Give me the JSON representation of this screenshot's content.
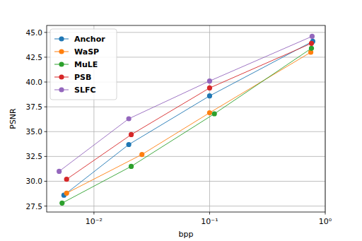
{
  "chart_data": {
    "type": "line",
    "x_label": "bpp",
    "y_label": "PSNR",
    "log": "x",
    "grid": true,
    "legend": "upper left",
    "marker": "circle",
    "xlim": [
      0.0039,
      1.0
    ],
    "ylim": [
      26.9,
      45.7
    ],
    "xticks": [
      {
        "value": 0.01,
        "label": "10⁻²"
      },
      {
        "value": 0.1,
        "label": "10⁻¹"
      },
      {
        "value": 1,
        "label": "10⁰"
      }
    ],
    "yticks": [
      27.5,
      {
        "value": 30,
        "label": "30.0"
      },
      32.5,
      {
        "value": 35,
        "label": "35.0"
      },
      37.5,
      {
        "value": 40,
        "label": "40.0"
      },
      42.5,
      {
        "value": 45,
        "label": "45.0"
      }
    ],
    "series": [
      {
        "name": "Anchor",
        "color": "#1f77b4",
        "x": [
          0.0055,
          0.02,
          0.1,
          0.78
        ],
        "values": [
          28.6,
          33.7,
          38.6,
          44.1
        ]
      },
      {
        "name": "WaSP",
        "color": "#ff7f0e",
        "x": [
          0.0058,
          0.026,
          0.1,
          0.75
        ],
        "values": [
          28.8,
          32.7,
          36.9,
          43.0
        ]
      },
      {
        "name": "MuLE",
        "color": "#2ca02c",
        "x": [
          0.0053,
          0.021,
          0.11,
          0.76
        ],
        "values": [
          27.8,
          31.5,
          36.8,
          43.4
        ]
      },
      {
        "name": "PSB",
        "color": "#d62728",
        "x": [
          0.0058,
          0.021,
          0.1,
          0.76
        ],
        "values": [
          30.2,
          34.7,
          39.4,
          43.9
        ]
      },
      {
        "name": "SLFC",
        "color": "#9467bd",
        "x": [
          0.005,
          0.02,
          0.1,
          0.77
        ],
        "values": [
          31.0,
          36.3,
          40.1,
          44.6
        ]
      }
    ]
  }
}
